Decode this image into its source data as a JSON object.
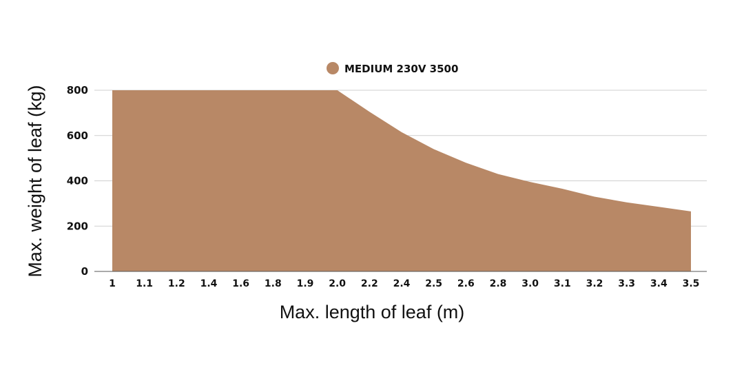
{
  "chart_data": {
    "type": "area",
    "title": "",
    "xlabel": "Max. length of leaf (m)",
    "ylabel": "Max. weight of leaf (kg)",
    "categories": [
      "1",
      "1.1",
      "1.2",
      "1.4",
      "1.6",
      "1.8",
      "1.9",
      "2.0",
      "2.2",
      "2.4",
      "2.5",
      "2.6",
      "2.8",
      "3.0",
      "3.1",
      "3.2",
      "3.3",
      "3.4",
      "3.5"
    ],
    "yticks": [
      "0",
      "200",
      "400",
      "600",
      "800"
    ],
    "ylim": [
      0,
      800
    ],
    "grid": true,
    "legend_position": "top-center",
    "series": [
      {
        "name": "MEDIUM 230V 3500",
        "color": "#b88866",
        "values": [
          800,
          800,
          800,
          800,
          800,
          800,
          800,
          800,
          705,
          615,
          540,
          480,
          430,
          395,
          365,
          330,
          305,
          285,
          265
        ]
      }
    ]
  }
}
